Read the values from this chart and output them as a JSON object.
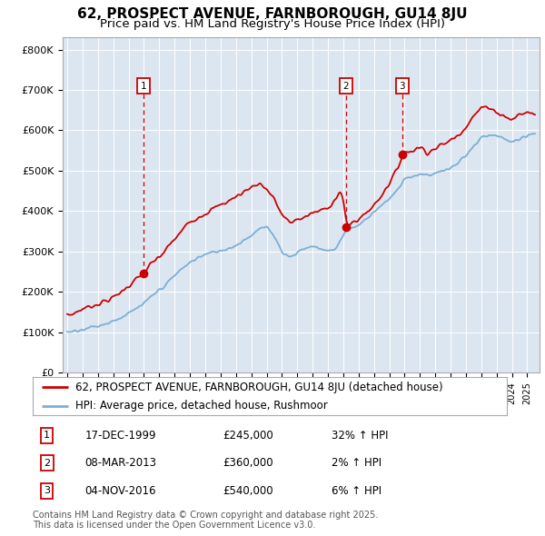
{
  "title": "62, PROSPECT AVENUE, FARNBOROUGH, GU14 8JU",
  "subtitle": "Price paid vs. HM Land Registry's House Price Index (HPI)",
  "red_line_color": "#cc0000",
  "blue_line_color": "#7bafd4",
  "plot_bg_color": "#dce6f1",
  "ylim": [
    0,
    830000
  ],
  "yticks": [
    0,
    100000,
    200000,
    300000,
    400000,
    500000,
    600000,
    700000,
    800000
  ],
  "ytick_labels": [
    "£0",
    "£100K",
    "£200K",
    "£300K",
    "£400K",
    "£500K",
    "£600K",
    "£700K",
    "£800K"
  ],
  "sales": [
    {
      "label": "1",
      "date": "17-DEC-1999",
      "price": 245000,
      "year": 1999.96,
      "pct": "32%",
      "dir": "↑"
    },
    {
      "label": "2",
      "date": "08-MAR-2013",
      "price": 360000,
      "year": 2013.18,
      "pct": "2%",
      "dir": "↑"
    },
    {
      "label": "3",
      "date": "04-NOV-2016",
      "price": 540000,
      "year": 2016.84,
      "pct": "6%",
      "dir": "↑"
    }
  ],
  "legend_entries": [
    "62, PROSPECT AVENUE, FARNBOROUGH, GU14 8JU (detached house)",
    "HPI: Average price, detached house, Rushmoor"
  ],
  "footnote": "Contains HM Land Registry data © Crown copyright and database right 2025.\nThis data is licensed under the Open Government Licence v3.0.",
  "title_fontsize": 11,
  "subtitle_fontsize": 9.5,
  "tick_fontsize": 8,
  "legend_fontsize": 8.5
}
